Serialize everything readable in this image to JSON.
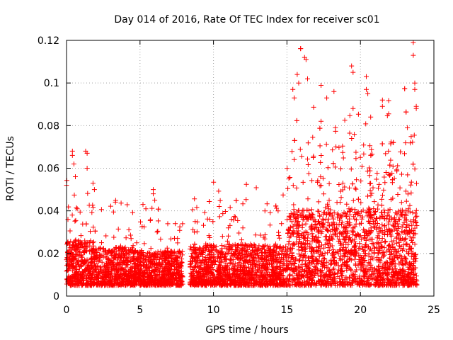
{
  "chart_data": {
    "type": "scatter",
    "title": "Day 014 of 2016, Rate Of TEC Index for receiver sc01",
    "xlabel": "GPS time / hours",
    "ylabel": "ROTI / TECUs",
    "xlim": [
      0,
      25
    ],
    "ylim": [
      0,
      0.12
    ],
    "xticks": [
      0,
      5,
      10,
      15,
      20,
      25
    ],
    "xtick_labels": [
      "0",
      "5",
      "10",
      "15",
      "20",
      "25"
    ],
    "yticks": [
      0,
      0.02,
      0.04,
      0.06,
      0.08,
      0.1,
      0.12
    ],
    "ytick_labels": [
      "0",
      "0.02",
      "0.04",
      "0.06",
      "0.08",
      "0.1",
      "0.12"
    ],
    "grid": true,
    "marker": "+",
    "series": [
      {
        "name": "sc01",
        "color": "#ff0000",
        "gaps": [
          [
            7.9,
            8.4
          ]
        ],
        "x_range": [
          0,
          23.85
        ],
        "typical_band": [
          0.005,
          0.02
        ],
        "notable_points": [
          [
            0.0,
            0.052
          ],
          [
            0.4,
            0.068
          ],
          [
            0.4,
            0.066
          ],
          [
            0.5,
            0.062
          ],
          [
            0.6,
            0.056
          ],
          [
            1.3,
            0.068
          ],
          [
            1.4,
            0.067
          ],
          [
            1.4,
            0.06
          ],
          [
            1.8,
            0.053
          ],
          [
            1.9,
            0.05
          ],
          [
            5.2,
            0.043
          ],
          [
            5.4,
            0.041
          ],
          [
            5.9,
            0.05
          ],
          [
            5.9,
            0.048
          ],
          [
            6.0,
            0.045
          ],
          [
            8.7,
            0.03
          ],
          [
            12.0,
            0.032
          ],
          [
            13.5,
            0.04
          ],
          [
            14.4,
            0.04
          ],
          [
            15.4,
            0.097
          ],
          [
            15.5,
            0.093
          ],
          [
            15.7,
            0.104
          ],
          [
            15.8,
            0.1
          ],
          [
            16.2,
            0.112
          ],
          [
            16.3,
            0.111
          ],
          [
            16.4,
            0.102
          ],
          [
            18.2,
            0.096
          ],
          [
            18.3,
            0.079
          ],
          [
            19.4,
            0.108
          ],
          [
            19.5,
            0.105
          ],
          [
            19.5,
            0.088
          ],
          [
            20.4,
            0.103
          ],
          [
            20.4,
            0.097
          ],
          [
            20.5,
            0.095
          ],
          [
            20.7,
            0.084
          ],
          [
            21.5,
            0.092
          ],
          [
            21.5,
            0.089
          ],
          [
            23.2,
            0.079
          ],
          [
            23.6,
            0.119
          ],
          [
            23.6,
            0.113
          ],
          [
            23.7,
            0.1
          ],
          [
            23.7,
            0.097
          ],
          [
            23.8,
            0.089
          ],
          [
            23.8,
            0.088
          ]
        ]
      }
    ]
  }
}
